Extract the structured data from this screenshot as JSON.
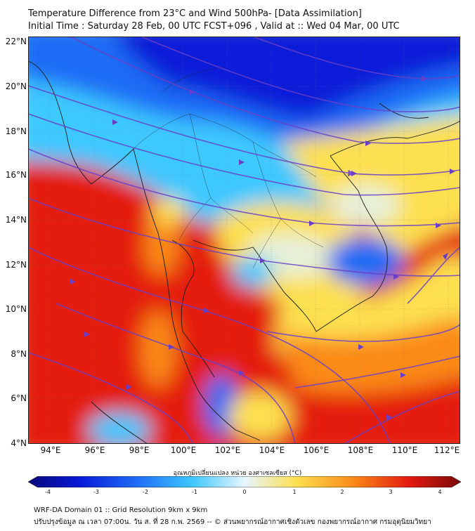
{
  "header": {
    "title": "Temperature Difference from 23°C and Wind 500hPa- [Data Assimilation]",
    "subtitle": "Initial Time : Saturday 28 Feb, 00 UTC FCST+096 , Valid at ::  Wed 04 Mar, 00 UTC"
  },
  "map": {
    "lat_labels": [
      "22°N",
      "20°N",
      "18°N",
      "16°N",
      "14°N",
      "12°N",
      "10°N",
      "8°N",
      "6°N",
      "4°N"
    ],
    "lon_labels": [
      "94°E",
      "96°E",
      "98°E",
      "100°E",
      "102°E",
      "104°E",
      "106°E",
      "108°E",
      "110°E",
      "112°E"
    ],
    "lat_range": [
      4,
      22.3
    ],
    "lon_range": [
      93,
      112.5
    ],
    "grid": true,
    "colors": {
      "deep_blue": "#0a1ad8",
      "blue": "#1e6cf5",
      "cyan": "#3ec8ff",
      "light": "#e6f0d8",
      "yellow": "#fde050",
      "orange": "#fb8a18",
      "red": "#e41a10",
      "streamline": "#6a4fc0",
      "coast": "#1a1a1a"
    }
  },
  "colorbar": {
    "label": "อุณหภูมิเปลี่ยนแปลง หน่วย องศาเซลเซียส (°C)",
    "ticks": [
      "-4",
      "-3",
      "-2",
      "-1",
      "0",
      "1",
      "2",
      "3",
      "4"
    ],
    "range": [
      -4,
      4
    ]
  },
  "footer": {
    "line1": "WRF-DA Domain 01 :: Grid Resolution 9km x 9km",
    "line2": "ปรับปรุงข้อมูล ณ เวลา 07:00น. วัน ส. ที่ 28 ก.พ. 2569 -- © ส่วนพยากรณ์อากาศเชิงตัวเลข กองพยากรณ์อากาศ กรมอุตุนิยมวิทยา"
  }
}
